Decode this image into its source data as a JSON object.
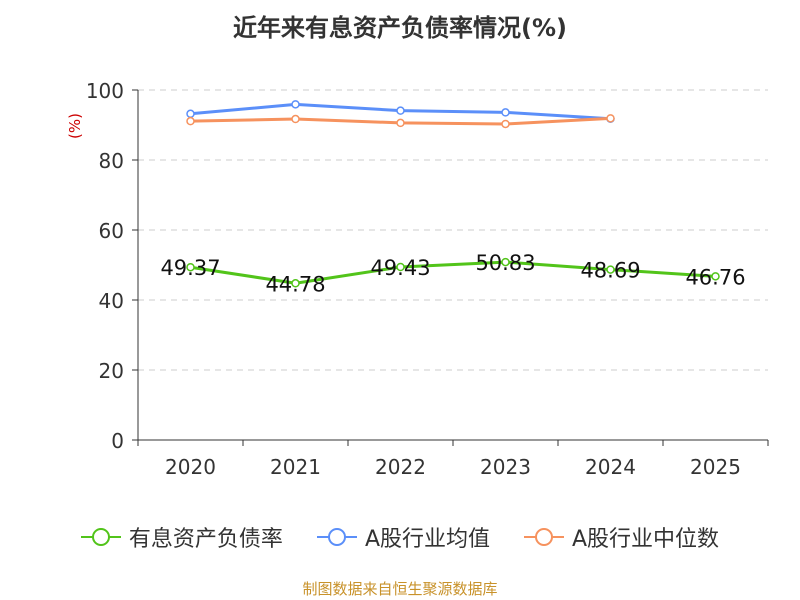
{
  "title": "近年来有息资产负债率情况(%)",
  "source": "制图数据来自恒生聚源数据库",
  "chart_data": {
    "type": "line",
    "title": "近年来有息资产负债率情况(%)",
    "ylabel": "(%)",
    "xlabel": "",
    "categories": [
      "2020",
      "2021",
      "2022",
      "2023",
      "2024",
      "2025"
    ],
    "ylim": [
      0,
      100
    ],
    "yticks": [
      0,
      20,
      40,
      60,
      80,
      100
    ],
    "grid": true,
    "legend_position": "bottom",
    "series": [
      {
        "name": "有息资产负债率",
        "color": "#52c41a",
        "values": [
          49.37,
          44.78,
          49.43,
          50.83,
          48.69,
          46.76
        ],
        "labels": [
          "49.37",
          "44.78",
          "49.43",
          "50.83",
          "48.69",
          "46.76"
        ]
      },
      {
        "name": "A股行业均值",
        "color": "#5b8ff9",
        "values": [
          93.2,
          95.9,
          94.1,
          93.6,
          91.8,
          null
        ]
      },
      {
        "name": "A股行业中位数",
        "color": "#f6925e",
        "values": [
          91.1,
          91.7,
          90.6,
          90.3,
          91.9,
          null
        ]
      }
    ]
  }
}
